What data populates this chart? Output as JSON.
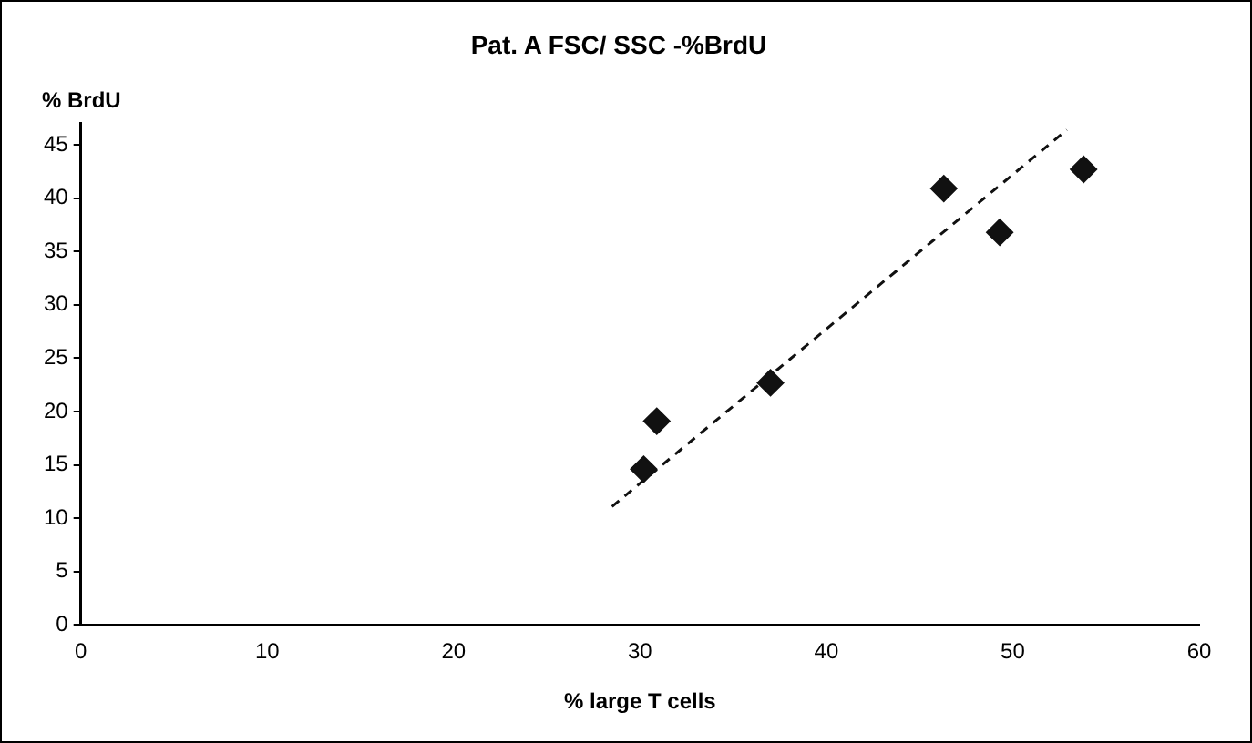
{
  "chart_data": {
    "type": "scatter",
    "title": "Pat. A FSC/ SSC -%BrdU",
    "xlabel": "% large T cells",
    "ylabel": "% BrdU",
    "xlim": [
      0,
      60
    ],
    "xticks": [
      0,
      10,
      20,
      30,
      40,
      50,
      60
    ],
    "ylim": [
      0,
      47
    ],
    "yticks": [
      0,
      5,
      10,
      15,
      20,
      25,
      30,
      35,
      40,
      45
    ],
    "grid": false,
    "legend": false,
    "marker": "diamond",
    "series": [
      {
        "color": "#111111",
        "x": [
          30.2,
          30.9,
          37.0,
          46.3,
          49.3,
          53.8
        ],
        "values": [
          14.6,
          19.1,
          22.7,
          40.9,
          36.8,
          42.7
        ]
      },
      {
        "type": "line",
        "color": "#111111",
        "line_style": "dashed",
        "marker": "none",
        "x": [
          28.5,
          52.9
        ],
        "values": [
          11.1,
          46.4
        ]
      }
    ]
  }
}
